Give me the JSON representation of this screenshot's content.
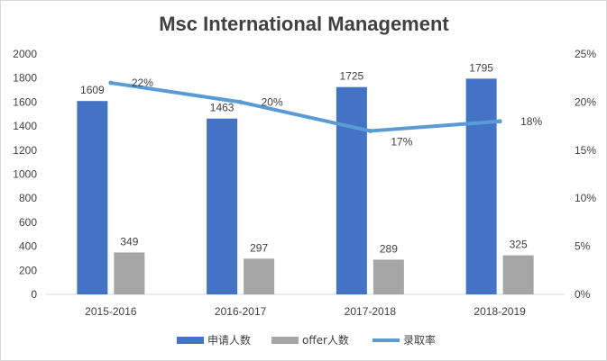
{
  "chart_data": {
    "type": "bar",
    "title": "Msc International Management",
    "categories": [
      "2015-2016",
      "2016-2017",
      "2017-2018",
      "2018-2019"
    ],
    "series": [
      {
        "name": "申请人数",
        "type": "bar",
        "axis": "left",
        "color": "#4472c4",
        "values": [
          1609,
          1463,
          1725,
          1795
        ],
        "labels": [
          "1609",
          "1463",
          "1725",
          "1795"
        ]
      },
      {
        "name": "offer人数",
        "type": "bar",
        "axis": "left",
        "color": "#a5a5a5",
        "values": [
          349,
          297,
          289,
          325
        ],
        "labels": [
          "349",
          "297",
          "289",
          "325"
        ]
      },
      {
        "name": "录取率",
        "type": "line",
        "axis": "right",
        "color": "#5b9bd5",
        "values": [
          22,
          20,
          17,
          18
        ],
        "labels": [
          "22%",
          "20%",
          "17%",
          "18%"
        ]
      }
    ],
    "ylim_left": [
      0,
      2000
    ],
    "yticks_left": [
      "0",
      "200",
      "400",
      "600",
      "800",
      "1000",
      "1200",
      "1400",
      "1600",
      "1800",
      "2000"
    ],
    "ylim_right": [
      0,
      25
    ],
    "yticks_right": [
      "0%",
      "5%",
      "10%",
      "15%",
      "20%",
      "25%"
    ],
    "grid": false,
    "legend_position": "bottom"
  }
}
